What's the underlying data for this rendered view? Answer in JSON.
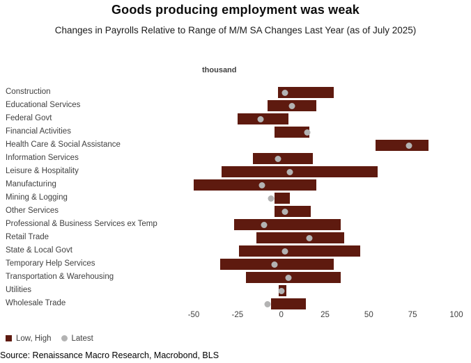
{
  "chart_data": {
    "type": "bar",
    "subtype": "horizontal-range-bar-with-latest-dot",
    "title": "Goods producing employment was weak",
    "subtitle": "Changes in Payrolls Relative to Range of M/M SA Changes Last Year (as of July 2025)",
    "unit_label": "thousand",
    "xlabel": "thousand",
    "ylabel": "",
    "xlim": [
      -50,
      100
    ],
    "xticks": [
      -50,
      -25,
      0,
      25,
      50,
      75,
      100
    ],
    "grid": false,
    "legend_position": "bottom-left",
    "categories": [
      "Construction",
      "Educational Services",
      "Federal Govt",
      "Financial Activities",
      "Health Care & Social Assistance",
      "Information Services",
      "Leisure & Hospitality",
      "Manufacturing",
      "Mining & Logging",
      "Other Services",
      "Professional & Business Services ex Temp",
      "Retail Trade",
      "State & Local Govt",
      "Temporary Help Services",
      "Transportation & Warehousing",
      "Utilities",
      "Wholesale Trade"
    ],
    "series": [
      {
        "name": "Low, High",
        "role": "range",
        "low": [
          -2,
          -8,
          -25,
          -4,
          54,
          -16,
          -34,
          -50,
          -4,
          -4,
          -27,
          -14,
          -24,
          -35,
          -20,
          -1.5,
          -6
        ],
        "high": [
          30,
          20,
          4,
          16,
          84,
          18,
          55,
          20,
          5,
          17,
          34,
          36,
          45,
          30,
          34,
          3,
          14
        ]
      },
      {
        "name": "Latest",
        "role": "dot",
        "values": [
          2,
          6,
          -12,
          15,
          73,
          -2,
          5,
          -11,
          -6,
          2,
          -10,
          16,
          2,
          -4,
          4,
          0,
          -8
        ]
      }
    ]
  },
  "legend": {
    "range_label": "Low, High",
    "latest_label": "Latest"
  },
  "source": "Source: Renaissance Macro Research, Macrobond, BLS",
  "colors": {
    "bar": "#5e1a0f",
    "dot": "#b3b3b3",
    "text": "#3f3f3f",
    "title": "#0d0d0d"
  }
}
